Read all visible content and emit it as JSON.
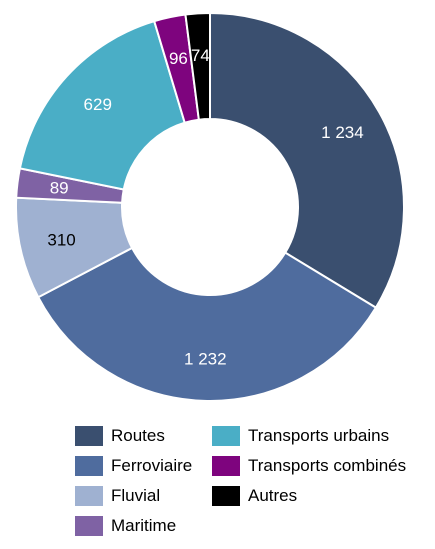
{
  "chart_data": {
    "type": "pie",
    "donut": true,
    "categories": [
      "Routes",
      "Ferroviaire",
      "Fluvial",
      "Maritime",
      "Transports urbains",
      "Transports combinés",
      "Autres"
    ],
    "values": [
      1234,
      1232,
      310,
      89,
      629,
      96,
      74
    ],
    "value_labels": [
      "1 234",
      "1 232",
      "310",
      "89",
      "629",
      "96",
      "74"
    ],
    "colors": [
      "#3a4f6f",
      "#4f6c9e",
      "#9fb1d1",
      "#7f62a4",
      "#4aaec6",
      "#7e047e",
      "#000000"
    ],
    "label_colors": [
      "#ffffff",
      "#ffffff",
      "#000000",
      "#ffffff",
      "#ffffff",
      "#ffffff",
      "#ffffff"
    ],
    "title": "",
    "legend_position": "bottom"
  },
  "legend": {
    "items": [
      {
        "label": "Routes",
        "color": "#3a4f6f"
      },
      {
        "label": "Transports urbains",
        "color": "#4aaec6"
      },
      {
        "label": "Ferroviaire",
        "color": "#4f6c9e"
      },
      {
        "label": "Transports combinés",
        "color": "#7e047e"
      },
      {
        "label": "Fluvial",
        "color": "#9fb1d1"
      },
      {
        "label": "Autres",
        "color": "#000000"
      },
      {
        "label": "Maritime",
        "color": "#7f62a4"
      }
    ]
  }
}
